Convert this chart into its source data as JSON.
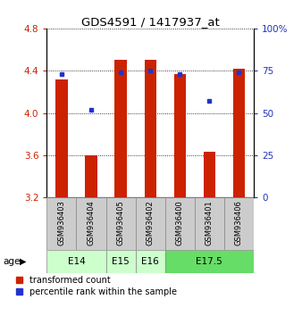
{
  "title": "GDS4591 / 1417937_at",
  "samples": [
    "GSM936403",
    "GSM936404",
    "GSM936405",
    "GSM936402",
    "GSM936400",
    "GSM936401",
    "GSM936406"
  ],
  "age_groups": [
    {
      "label": "E14",
      "start": 0,
      "end": 2,
      "color": "#ccffcc"
    },
    {
      "label": "E15",
      "start": 2,
      "end": 3,
      "color": "#ccffcc"
    },
    {
      "label": "E16",
      "start": 3,
      "end": 4,
      "color": "#ccffcc"
    },
    {
      "label": "E17.5",
      "start": 4,
      "end": 7,
      "color": "#66dd66"
    }
  ],
  "transformed_counts": [
    4.32,
    3.6,
    4.5,
    4.5,
    4.37,
    3.63,
    4.42
  ],
  "percentile_ranks": [
    73,
    52,
    74,
    75,
    73,
    57,
    74
  ],
  "ymin": 3.2,
  "ymax": 4.8,
  "yticks": [
    3.2,
    3.6,
    4.0,
    4.4,
    4.8
  ],
  "y2min": 0,
  "y2max": 100,
  "y2ticks": [
    0,
    25,
    50,
    75,
    100
  ],
  "bar_color": "#cc2200",
  "dot_color": "#2233cc",
  "bar_bottom": 3.2,
  "sample_box_color": "#cccccc",
  "left_tick_color": "#cc2200",
  "right_tick_color": "#2233bb",
  "legend_labels": [
    "transformed count",
    "percentile rank within the sample"
  ]
}
